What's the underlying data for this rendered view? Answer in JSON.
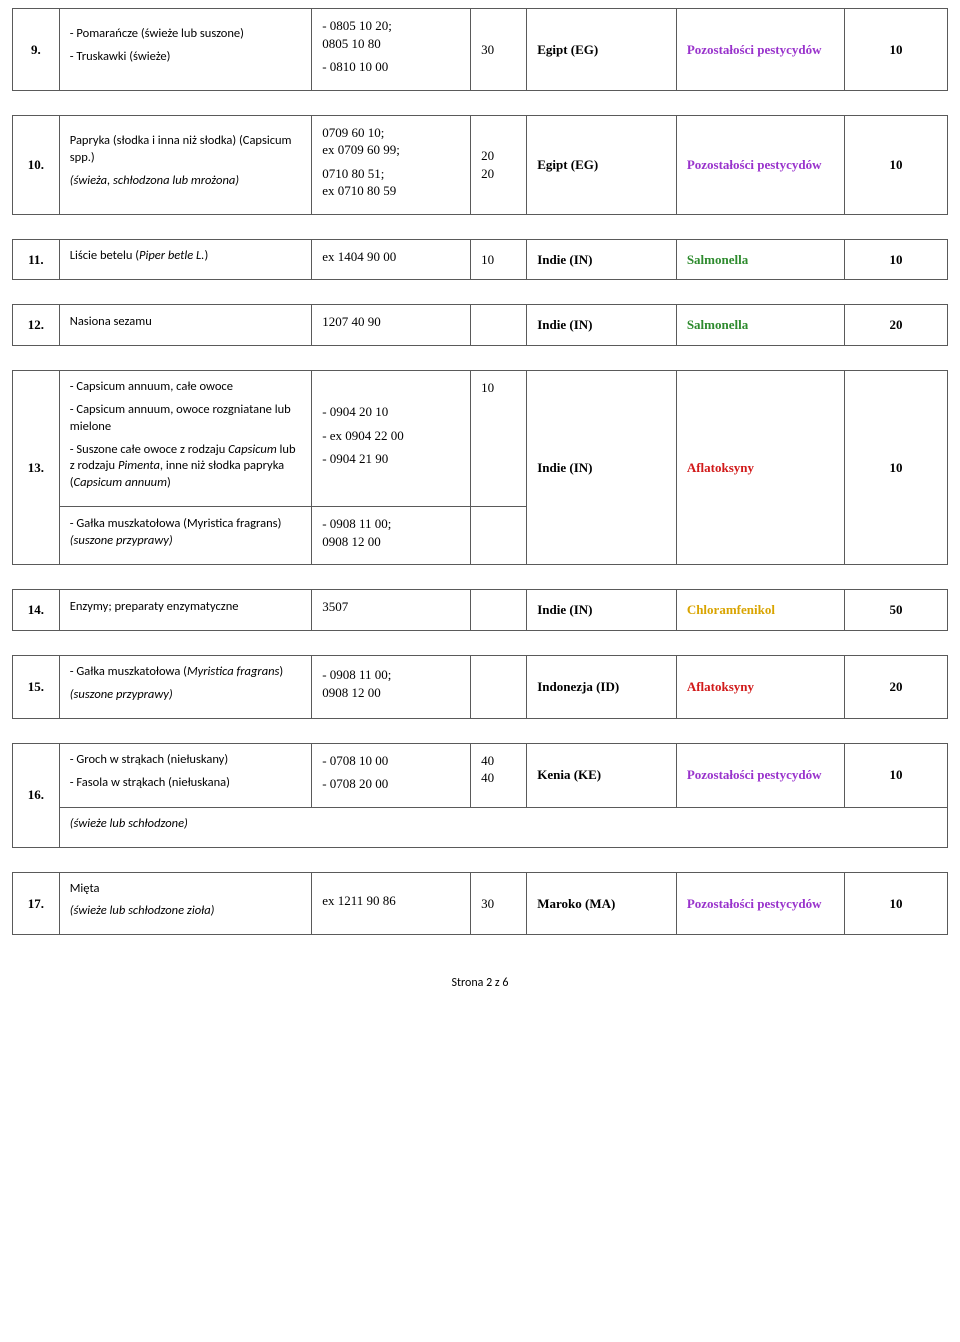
{
  "hazardColors": {
    "pozostalosci": "#9933cc",
    "salmonella": "#2e8b2e",
    "aflatoksyny": "#d11a1a",
    "chloramfenikol": "#d9a400"
  },
  "rows": [
    {
      "num": "9.",
      "desc": [
        "- Pomarańcze (świeże lub suszone)",
        "- Truskawki (świeże)"
      ],
      "code": [
        "- 0805 10 20;\n  0805 10 80",
        "- 0810 10 00"
      ],
      "pct": "30",
      "country": "Egipt (EG)",
      "hazard": "Pozostałości pestycydów",
      "hazardColorKey": "pozostalosci",
      "last": "10"
    },
    {
      "num": "10.",
      "desc": [
        "Papryka (słodka i inna niż słodka) (Capsicum spp.)",
        "<span class=\"italic\">(świeża, schłodzona lub mrożona)</span>"
      ],
      "code": [
        "0709 60 10;\nex 0709 60 99;",
        "0710 80 51;\nex 0710 80 59"
      ],
      "pct": "20\n20",
      "country": "Egipt (EG)",
      "hazard": "Pozostałości pestycydów",
      "hazardColorKey": "pozostalosci",
      "last": "10"
    },
    {
      "num": "11.",
      "desc": [
        "Liście betelu (<span class=\"italic\">Piper betle L.</span>)"
      ],
      "code": [
        "ex 1404 90 00"
      ],
      "pct": "10",
      "country": "Indie (IN)",
      "hazard": "Salmonella",
      "hazardColorKey": "salmonella",
      "last": "10"
    },
    {
      "num": "12.",
      "desc": [
        "Nasiona sezamu"
      ],
      "code": [
        "1207 40 90"
      ],
      "pct": "",
      "country": "Indie (IN)",
      "hazard": "Salmonella",
      "hazardColorKey": "salmonella",
      "last": "20"
    },
    {
      "num": "13.",
      "descGroups": [
        {
          "desc": [
            "- Capsicum annuum, całe owoce",
            "- Capsicum  annuum, owoce rozgniatane lub mielone",
            "- Suszone całe owoce z rodzaju <span class=\"italic\">Capsicum</span> lub z rodzaju <span class=\"italic\">Pimenta</span>, inne niż słodka papryka (<span class=\"italic\">Capsicum annuum</span>)"
          ],
          "code": [
            " - 0904 20 10",
            "- ex 0904 22 00",
            "- 0904 21 90"
          ],
          "pct": "10"
        },
        {
          "desc": [
            "- Gałka muszkatołowa (Myristica fragrans) <span class=\"italic\">(suszone przyprawy)</span>"
          ],
          "code": [
            "- 0908 11 00;\n  0908 12 00"
          ],
          "pct": ""
        }
      ],
      "country": "Indie (IN)",
      "hazard": "Aflatoksyny",
      "hazardColorKey": "aflatoksyny",
      "last": "10"
    },
    {
      "num": "14.",
      "desc": [
        "Enzymy; preparaty enzymatyczne"
      ],
      "code": [
        " 3507"
      ],
      "pct": "",
      "country": "Indie (IN)",
      "hazard": "Chloramfenikol",
      "hazardColorKey": "chloramfenikol",
      "last": "50"
    },
    {
      "num": "15.",
      "desc": [
        "- Gałka muszkatołowa (<span class=\"italic\">Myristica fragrans</span>)",
        "<span class=\"italic\">(suszone przyprawy)</span>"
      ],
      "code": [
        "- 0908 11 00;\n  0908 12 00"
      ],
      "pct": "",
      "country": "Indonezja (ID)",
      "hazard": "Aflatoksyny",
      "hazardColorKey": "aflatoksyny",
      "last": "20"
    },
    {
      "num": "16.",
      "desc": [
        "- Groch w strąkach (niełuskany)",
        "- Fasola w strąkach (niełuskana)",
        "<span class=\"italic\">(świeże lub schłodzone)</span>"
      ],
      "code": [
        "- 0708 10 00",
        "- 0708 20 00",
        ""
      ],
      "pct": "40\n40",
      "country": "Kenia (KE)",
      "hazard": "Pozostałości pestycydów",
      "hazardColorKey": "pozostalosci",
      "last": "10",
      "splitLastDesc": true
    },
    {
      "num": "17.",
      "desc": [
        "Mięta",
        "<span class=\"italic\">(świeże lub schłodzone zioła)</span>"
      ],
      "code": [
        "ex 1211 90 86"
      ],
      "pct": "30",
      "country": "Maroko (MA)",
      "hazard": "Pozostałości pestycydów",
      "hazardColorKey": "pozostalosci",
      "last": "10"
    }
  ],
  "footer": "Strona 2 z 6"
}
